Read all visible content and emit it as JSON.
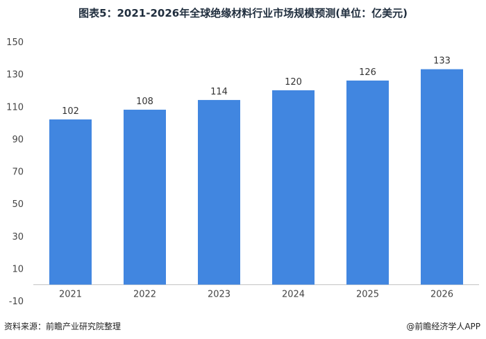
{
  "title": "图表5：2021-2026年全球绝缘材料行业市场规模预测(单位：亿美元)",
  "footer": {
    "source": "资料来源：前瞻产业研究院整理",
    "brand": "@前瞻经济学人APP"
  },
  "colors": {
    "bar": "#4186E0",
    "axis": "#bfbfbf"
  },
  "chart_data": {
    "type": "bar",
    "categories": [
      "2021",
      "2022",
      "2023",
      "2024",
      "2025",
      "2026"
    ],
    "values": [
      102,
      108,
      114,
      120,
      126,
      133
    ],
    "title": "图表5：2021-2026年全球绝缘材料行业市场规模预测(单位：亿美元)",
    "xlabel": "",
    "ylabel": "",
    "ylim": [
      -10,
      150
    ],
    "yticks": [
      -10,
      10,
      30,
      50,
      70,
      90,
      110,
      130,
      150
    ],
    "grid": false,
    "legend": "none"
  }
}
